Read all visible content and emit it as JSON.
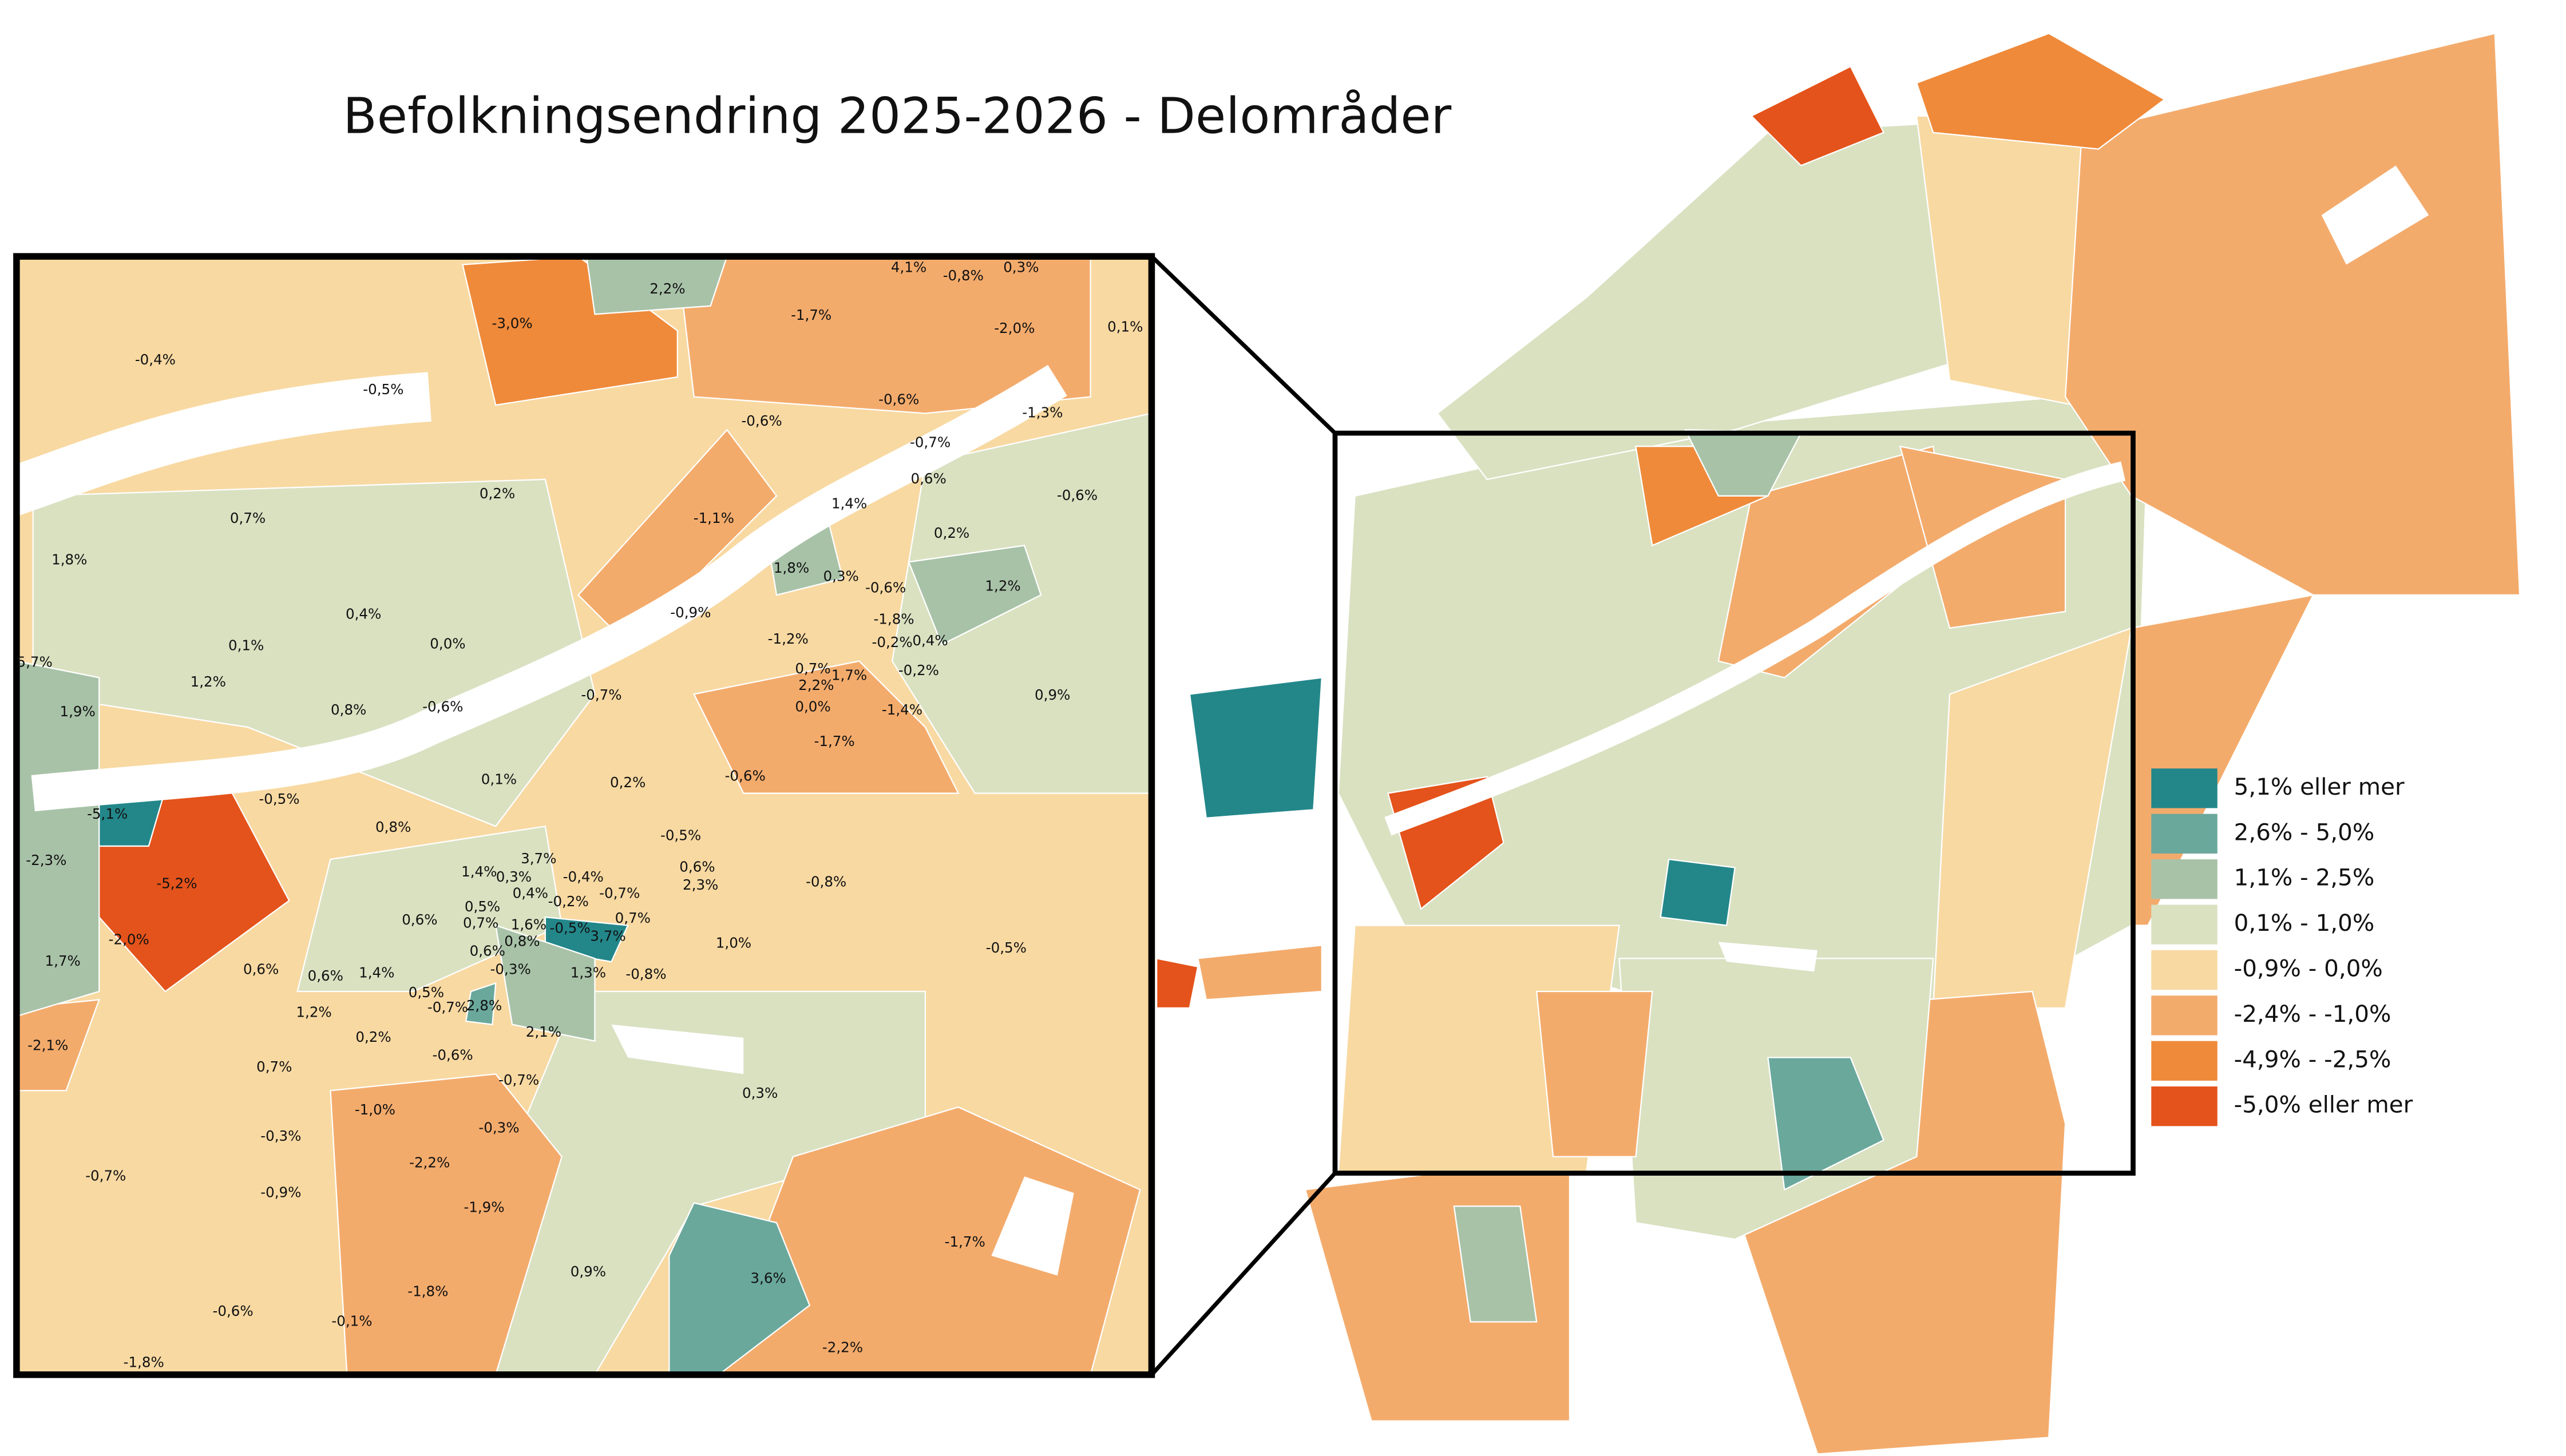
{
  "title": "Befolkningsendring 2025-2026 - Delområder",
  "legend": [
    {
      "label": "5,1% eller mer",
      "color": "#23878a"
    },
    {
      "label": "2,6% - 5,0%",
      "color": "#6aa89c"
    },
    {
      "label": "1,1% - 2,5%",
      "color": "#a8c2a8"
    },
    {
      "label": "0,1% - 1,0%",
      "color": "#d9e1c1"
    },
    {
      "label": "-0,9% - 0,0%",
      "color": "#f8d9a2"
    },
    {
      "label": "-2,4% - -1,0%",
      "color": "#f3ab6c"
    },
    {
      "label": "-4,9% - -2,5%",
      "color": "#ef8a3a"
    },
    {
      "label": "-5,0% eller mer",
      "color": "#e4531b"
    }
  ],
  "inset_labels": [
    "-0,4%",
    "-0,5%",
    "-3,0%",
    "2,2%",
    "-1,7%",
    "4,1%",
    "-0,8%",
    "0,3%",
    "-2,0%",
    "0,1%",
    "-0,6%",
    "-0,6%",
    "-0,7%",
    "-1,3%",
    "0,6%",
    "-0,6%",
    "0,2%",
    "0,7%",
    "-1,1%",
    "1,4%",
    "0,2%",
    "1,8%",
    "1,8%",
    "0,3%",
    "-0,6%",
    "1,2%",
    "0,4%",
    "-0,9%",
    "-1,8%",
    "-1,2%",
    "-0,2%",
    "0,4%",
    "0,1%",
    "0,0%",
    "5,7%",
    "0,7%",
    "2,2%",
    "1,7%",
    "-0,2%",
    "1,2%",
    "-0,7%",
    "0,0%",
    "-1,4%",
    "0,9%",
    "1,9%",
    "0,8%",
    "-0,6%",
    "-1,7%",
    "-0,6%",
    "0,1%",
    "0,2%",
    "-0,5%",
    "-5,1%",
    "0,8%",
    "-0,5%",
    "-2,3%",
    "3,7%",
    "1,4%",
    "-0,4%",
    "0,6%",
    "0,3%",
    "2,3%",
    "-0,8%",
    "-5,2%",
    "0,4%",
    "-0,2%",
    "-0,7%",
    "0,5%",
    "0,6%",
    "0,7%",
    "1,6%",
    "-0,5%",
    "0,7%",
    "3,7%",
    "0,8%",
    "1,0%",
    "-2,0%",
    "0,6%",
    "-0,5%",
    "1,7%",
    "0,6%",
    "-0,3%",
    "1,3%",
    "-0,8%",
    "0,6%",
    "1,4%",
    "0,5%",
    "-0,7%",
    "2,8%",
    "1,2%",
    "-2,1%",
    "0,2%",
    "2,1%",
    "-0,6%",
    "0,7%",
    "-0,7%",
    "0,3%",
    "-1,0%",
    "-0,3%",
    "-0,3%",
    "-2,2%",
    "-0,7%",
    "-0,9%",
    "-1,9%",
    "-1,8%",
    "0,9%",
    "3,6%",
    "-1,7%",
    "-0,6%",
    "-0,1%",
    "-2,2%",
    "-1,8%"
  ]
}
